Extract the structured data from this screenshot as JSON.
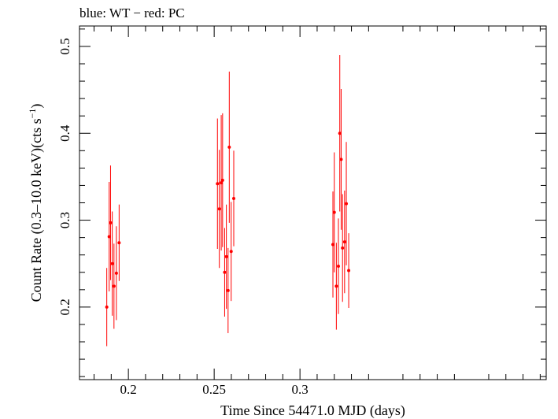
{
  "chart_data": {
    "type": "scatter",
    "title": "blue: WT − red: PC",
    "xlabel": "Time Since 54471.0 MJD (days)",
    "ylabel_main": "Count Rate (0.3–10.0 keV)(cts s",
    "ylabel_sup": "−1",
    "ylabel_tail": ")",
    "xlim": [
      0.1715,
      0.4435
    ],
    "ylim": [
      0.1165,
      0.5235
    ],
    "xticks": [
      0.2,
      0.25,
      0.3
    ],
    "xtick_labels": [
      "0.2",
      "0.25",
      "0.3"
    ],
    "yticks": [
      0.2,
      0.3,
      0.4,
      0.5
    ],
    "ytick_labels": [
      "0.2",
      "0.3",
      "0.4",
      "0.5"
    ],
    "grid": false,
    "series": [
      {
        "color": "#ff0000",
        "x": [
          0.1874,
          0.1888,
          0.1896,
          0.1906,
          0.1916,
          0.193,
          0.1946,
          0.2519,
          0.253,
          0.2541,
          0.2549,
          0.2561,
          0.2571,
          0.2581,
          0.2588,
          0.2599,
          0.2614,
          0.3192,
          0.32,
          0.3212,
          0.3224,
          0.3232,
          0.324,
          0.3248,
          0.326,
          0.327,
          0.3284
        ],
        "y": [
          0.2,
          0.281,
          0.297,
          0.25,
          0.224,
          0.239,
          0.274,
          0.342,
          0.313,
          0.343,
          0.346,
          0.24,
          0.258,
          0.219,
          0.384,
          0.264,
          0.325,
          0.272,
          0.309,
          0.224,
          0.247,
          0.4,
          0.37,
          0.268,
          0.275,
          0.319,
          0.242
        ],
        "yerr": [
          0.045,
          0.063,
          0.066,
          0.06,
          0.049,
          0.054,
          0.044,
          0.075,
          0.068,
          0.078,
          0.077,
          0.051,
          0.06,
          0.049,
          0.087,
          0.057,
          0.055,
          0.061,
          0.069,
          0.05,
          0.055,
          0.09,
          0.081,
          0.062,
          0.059,
          0.071,
          0.043
        ],
        "xerr": [
          0.0007,
          0.0007,
          0.0007,
          0.0007,
          0.0007,
          0.0007,
          0.0007,
          0.0007,
          0.0007,
          0.0007,
          0.0007,
          0.0007,
          0.0007,
          0.0007,
          0.0007,
          0.0007,
          0.0007,
          0.0007,
          0.0007,
          0.0007,
          0.0007,
          0.0007,
          0.0007,
          0.0007,
          0.0007,
          0.0007,
          0.0007
        ]
      }
    ]
  }
}
